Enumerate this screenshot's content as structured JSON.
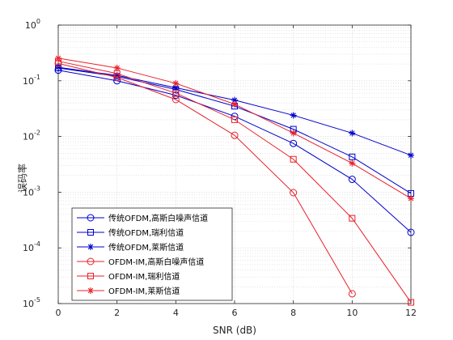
{
  "chart_data": {
    "type": "line",
    "title": "",
    "xlabel": "SNR (dB)",
    "ylabel": "误码率",
    "xlim": [
      0,
      12
    ],
    "ylim": [
      1e-05,
      1
    ],
    "yscale": "log",
    "grid": true,
    "legend_position": "bottom-left",
    "x_ticks": [
      "0",
      "2",
      "4",
      "6",
      "8",
      "10",
      "12"
    ],
    "y_ticks": [
      {
        "base": "10",
        "exp": "-5"
      },
      {
        "base": "10",
        "exp": "-4"
      },
      {
        "base": "10",
        "exp": "-3"
      },
      {
        "base": "10",
        "exp": "-2"
      },
      {
        "base": "10",
        "exp": "-1"
      },
      {
        "base": "10",
        "exp": "0"
      }
    ],
    "x": [
      0,
      2,
      4,
      6,
      8,
      10,
      12
    ],
    "series": [
      {
        "name": "传统OFDM,高斯白噪声信道",
        "color": "#0000cc",
        "marker": "circle",
        "values": [
          0.155,
          0.1,
          0.055,
          0.023,
          0.0075,
          0.0017,
          0.00019
        ]
      },
      {
        "name": "传统OFDM,瑞利信道",
        "color": "#0000cc",
        "marker": "square",
        "values": [
          0.17,
          0.12,
          0.07,
          0.035,
          0.0135,
          0.0043,
          0.00095
        ]
      },
      {
        "name": "传统OFDM,莱斯信道",
        "color": "#0000cc",
        "marker": "star",
        "values": [
          0.175,
          0.125,
          0.075,
          0.045,
          0.024,
          0.0115,
          0.0046
        ]
      },
      {
        "name": "OFDM-IM,高斯白噪声信道",
        "color": "#e8202a",
        "marker": "circle",
        "values": [
          0.205,
          0.115,
          0.046,
          0.0105,
          0.00098,
          1.5e-05,
          null
        ]
      },
      {
        "name": "OFDM-IM,瑞利信道",
        "color": "#e8202a",
        "marker": "square",
        "values": [
          0.225,
          0.135,
          0.06,
          0.02,
          0.0039,
          0.00034,
          1.05e-05
        ]
      },
      {
        "name": "OFDM-IM,莱斯信道",
        "color": "#e8202a",
        "marker": "star",
        "values": [
          0.255,
          0.17,
          0.09,
          0.038,
          0.0115,
          0.0033,
          0.00077
        ]
      }
    ]
  }
}
